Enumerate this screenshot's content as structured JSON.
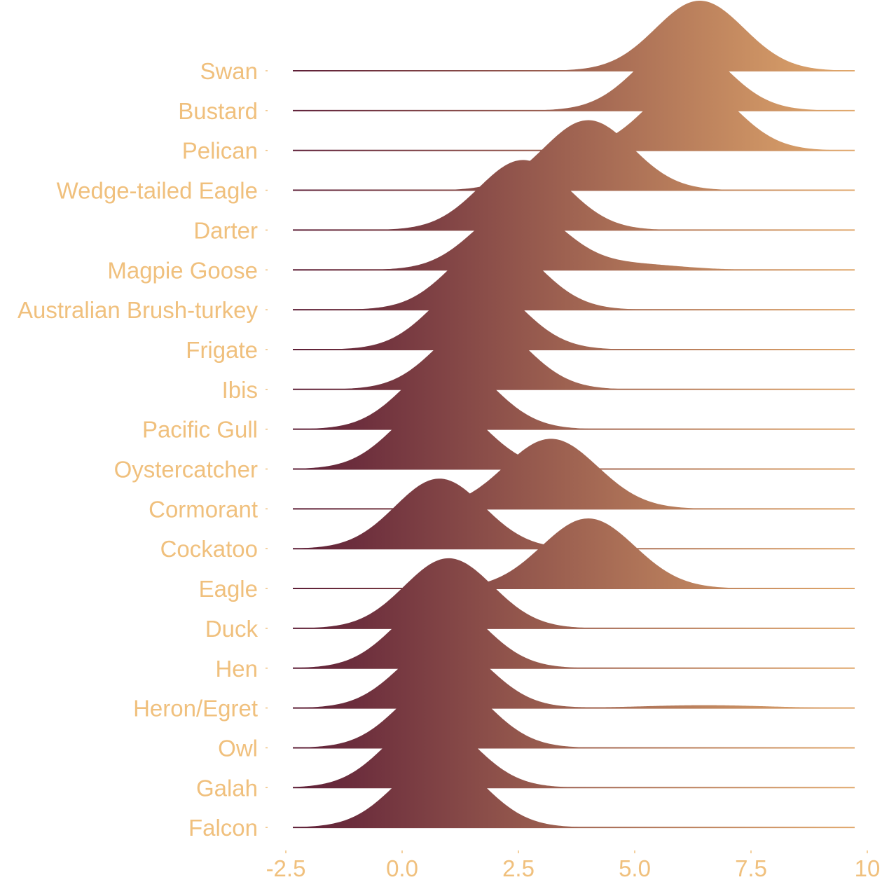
{
  "chart_data": {
    "type": "ridgeline",
    "title": "",
    "xlabel": "",
    "ylabel": "",
    "xlim": [
      -2.5,
      10
    ],
    "x_ticks": [
      "-2.5",
      "0.0",
      "2.5",
      "5.0",
      "7.5",
      "10"
    ],
    "grid": false,
    "legend": "none",
    "colors": {
      "low": "#5e1f37",
      "high": "#e1a86c",
      "labels": "#f0c07d",
      "baseline": "#4a1530"
    },
    "series": [
      {
        "name": "Swan",
        "components": [
          {
            "mean": 6.4,
            "sd": 0.95,
            "weight": 1.0
          }
        ]
      },
      {
        "name": "Bustard",
        "components": [
          {
            "mean": 6.0,
            "sd": 0.95,
            "weight": 1.0
          }
        ]
      },
      {
        "name": "Pelican",
        "components": [
          {
            "mean": 6.2,
            "sd": 0.95,
            "weight": 1.0
          }
        ]
      },
      {
        "name": "Wedge-tailed Eagle",
        "components": [
          {
            "mean": 4.0,
            "sd": 0.95,
            "weight": 1.0
          }
        ]
      },
      {
        "name": "Darter",
        "components": [
          {
            "mean": 2.6,
            "sd": 0.95,
            "weight": 1.0
          }
        ]
      },
      {
        "name": "Magpie Goose",
        "components": [
          {
            "mean": 2.5,
            "sd": 0.95,
            "weight": 0.92
          },
          {
            "mean": 5.0,
            "sd": 1.0,
            "weight": 0.08
          }
        ]
      },
      {
        "name": "Australian Brush-turkey",
        "components": [
          {
            "mean": 2.0,
            "sd": 0.95,
            "weight": 1.0
          }
        ]
      },
      {
        "name": "Frigate",
        "components": [
          {
            "mean": 1.6,
            "sd": 0.95,
            "weight": 1.0
          }
        ]
      },
      {
        "name": "Ibis",
        "components": [
          {
            "mean": 1.7,
            "sd": 0.95,
            "weight": 1.0
          }
        ]
      },
      {
        "name": "Pacific Gull",
        "components": [
          {
            "mean": 1.0,
            "sd": 0.95,
            "weight": 1.0
          }
        ]
      },
      {
        "name": "Oystercatcher",
        "components": [
          {
            "mean": 0.8,
            "sd": 0.95,
            "weight": 1.0
          }
        ]
      },
      {
        "name": "Cormorant",
        "components": [
          {
            "mean": 3.2,
            "sd": 1.0,
            "weight": 1.0
          }
        ]
      },
      {
        "name": "Cockatoo",
        "components": [
          {
            "mean": 0.8,
            "sd": 0.95,
            "weight": 1.0
          }
        ]
      },
      {
        "name": "Eagle",
        "components": [
          {
            "mean": 4.0,
            "sd": 1.0,
            "weight": 1.0
          }
        ]
      },
      {
        "name": "Duck",
        "components": [
          {
            "mean": 1.0,
            "sd": 0.95,
            "weight": 1.0
          }
        ]
      },
      {
        "name": "Hen",
        "components": [
          {
            "mean": 0.8,
            "sd": 0.95,
            "weight": 1.0
          }
        ]
      },
      {
        "name": "Heron/Egret",
        "components": [
          {
            "mean": 0.9,
            "sd": 0.95,
            "weight": 0.96
          },
          {
            "mean": 6.5,
            "sd": 1.3,
            "weight": 0.04
          }
        ]
      },
      {
        "name": "Owl",
        "components": [
          {
            "mean": 0.9,
            "sd": 0.95,
            "weight": 1.0
          }
        ]
      },
      {
        "name": "Galah",
        "components": [
          {
            "mean": 0.6,
            "sd": 0.95,
            "weight": 1.0
          }
        ]
      },
      {
        "name": "Falcon",
        "components": [
          {
            "mean": 0.8,
            "sd": 0.95,
            "weight": 1.0
          }
        ]
      }
    ]
  }
}
